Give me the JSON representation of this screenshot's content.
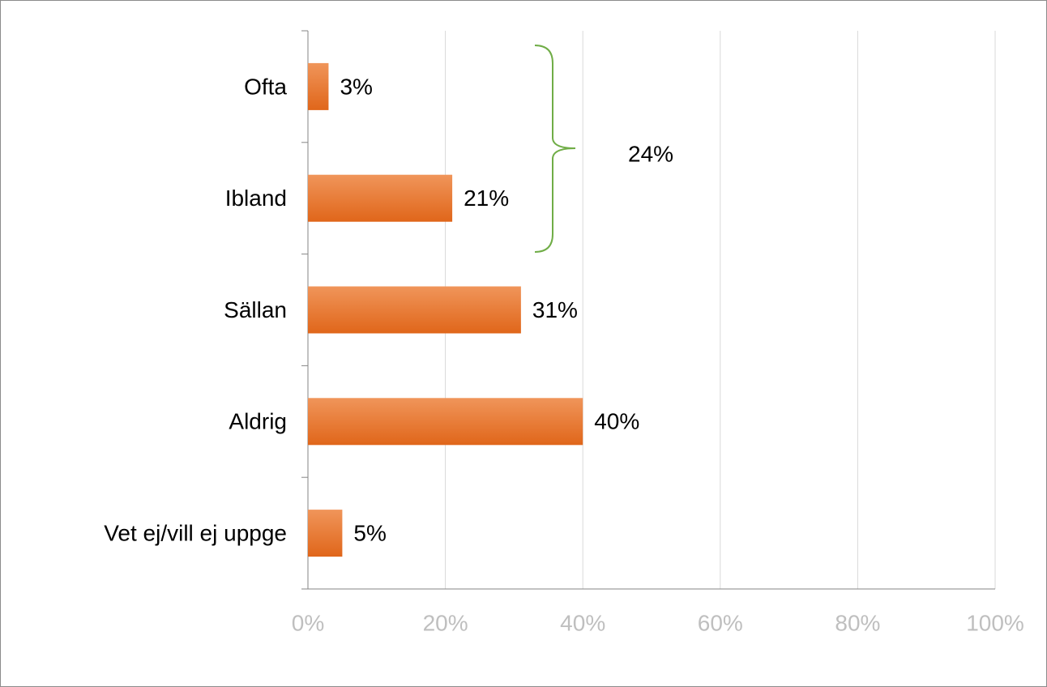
{
  "chart_data": {
    "type": "bar",
    "orientation": "horizontal",
    "categories": [
      "Ofta",
      "Ibland",
      "Sällan",
      "Aldrig",
      "Vet ej/vill ej uppge"
    ],
    "values": [
      3,
      21,
      31,
      40,
      5
    ],
    "value_labels": [
      "3%",
      "21%",
      "31%",
      "40%",
      "5%"
    ],
    "color": "#e46c1a",
    "xlim": [
      0,
      100
    ],
    "xticks": [
      {
        "value": 0,
        "label": "0%"
      },
      {
        "value": 20,
        "label": "20%"
      },
      {
        "value": 40,
        "label": "40%"
      },
      {
        "value": 60,
        "label": "60%"
      },
      {
        "value": 80,
        "label": "80%"
      },
      {
        "value": 100,
        "label": "100%"
      }
    ],
    "grid": true,
    "annotations": [
      {
        "text": "24%"
      }
    ]
  }
}
